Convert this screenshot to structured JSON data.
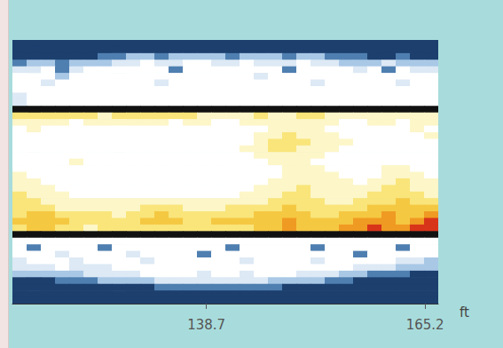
{
  "chart_data": {
    "type": "heatmap",
    "x_label": "ft",
    "xlim": [
      115.2,
      166.8
    ],
    "xticks": [
      138.7,
      165.2
    ],
    "tick_labels": "x",
    "color_range": [
      0,
      10
    ],
    "xbins": [
      115.2,
      116.92,
      118.64,
      120.36,
      122.08,
      123.8,
      125.52,
      127.24,
      128.96,
      130.68,
      132.4,
      134.12,
      135.84,
      137.56,
      139.28,
      141.0,
      142.72,
      144.44,
      146.16,
      147.88,
      149.6,
      151.32,
      153.04,
      154.76,
      156.48,
      158.2,
      159.92,
      161.64,
      163.36,
      165.08,
      166.8
    ],
    "cells": [
      [
        0,
        0,
        0,
        0,
        0,
        0,
        0,
        0,
        0,
        0,
        0,
        0,
        0,
        0,
        0,
        0,
        0,
        0,
        0,
        0,
        0,
        0,
        0,
        0,
        0,
        0,
        0,
        0,
        0,
        0
      ],
      [
        0,
        0,
        0,
        0,
        0,
        0,
        0,
        0,
        0,
        0,
        0,
        0,
        0,
        0,
        0,
        0,
        0,
        0,
        0,
        0,
        0,
        0,
        0,
        0,
        0,
        0,
        0,
        0,
        0,
        0
      ],
      [
        0,
        0,
        0,
        0,
        0,
        0,
        1,
        1,
        2,
        2,
        1,
        2,
        2,
        2,
        2,
        1,
        2,
        2,
        2,
        1,
        2,
        2,
        1,
        1,
        1,
        0,
        0,
        1,
        0,
        0
      ],
      [
        1,
        2,
        2,
        1,
        2,
        2,
        2,
        3,
        3,
        4,
        3,
        3,
        4,
        4,
        3,
        3,
        4,
        3,
        3,
        3,
        4,
        3,
        3,
        2,
        2,
        2,
        3,
        2,
        2,
        2
      ],
      [
        3,
        3,
        4,
        1,
        3,
        4,
        4,
        4,
        4,
        4,
        4,
        1,
        4,
        4,
        4,
        4,
        4,
        4,
        4,
        1,
        4,
        4,
        4,
        4,
        3,
        4,
        1,
        4,
        3,
        3
      ],
      [
        4,
        4,
        4,
        2,
        4,
        4,
        4,
        4,
        4,
        4,
        4,
        4,
        4,
        4,
        4,
        4,
        4,
        3,
        4,
        4,
        4,
        4,
        4,
        4,
        4,
        4,
        4,
        4,
        4,
        4
      ],
      [
        4,
        4,
        3,
        4,
        4,
        4,
        4,
        4,
        4,
        4,
        3,
        4,
        4,
        4,
        4,
        4,
        4,
        4,
        4,
        4,
        4,
        3,
        4,
        4,
        4,
        4,
        4,
        3,
        4,
        4
      ],
      [
        4,
        4,
        4,
        4,
        4,
        4,
        4,
        4,
        4,
        4,
        4,
        4,
        4,
        4,
        4,
        4,
        4,
        4,
        4,
        4,
        4,
        4,
        4,
        4,
        4,
        4,
        4,
        4,
        4,
        4
      ],
      [
        3,
        4,
        4,
        4,
        4,
        4,
        4,
        4,
        4,
        4,
        4,
        4,
        4,
        4,
        4,
        4,
        4,
        4,
        4,
        4,
        4,
        4,
        4,
        4,
        4,
        4,
        4,
        4,
        4,
        4
      ],
      [
        3,
        4,
        4,
        4,
        4,
        4,
        4,
        4,
        4,
        4,
        4,
        4,
        4,
        4,
        4,
        4,
        4,
        4,
        4,
        4,
        4,
        4,
        4,
        4,
        4,
        4,
        4,
        4,
        4,
        4
      ],
      [
        10,
        10,
        10,
        10,
        10,
        10,
        10,
        10,
        10,
        10,
        10,
        10,
        10,
        10,
        10,
        10,
        10,
        10,
        10,
        10,
        10,
        10,
        10,
        10,
        10,
        10,
        10,
        10,
        10,
        10
      ],
      [
        6,
        6,
        6,
        6,
        6,
        6,
        5,
        6,
        6,
        6,
        6,
        6,
        6,
        5,
        5,
        5,
        5,
        6,
        5,
        5,
        6,
        6,
        5,
        5,
        5,
        5,
        5,
        5,
        5,
        5
      ],
      [
        5,
        5,
        5,
        5,
        4,
        5,
        5,
        5,
        5,
        5,
        5,
        4,
        5,
        5,
        4,
        4,
        5,
        5,
        5,
        5,
        5,
        5,
        5,
        4,
        4,
        5,
        5,
        4,
        5,
        5
      ],
      [
        4,
        5,
        4,
        4,
        4,
        4,
        4,
        4,
        4,
        4,
        4,
        4,
        4,
        4,
        4,
        4,
        4,
        4,
        5,
        5,
        5,
        5,
        4,
        4,
        4,
        4,
        4,
        4,
        5,
        4
      ],
      [
        4,
        4,
        4,
        4,
        4,
        4,
        4,
        4,
        4,
        4,
        4,
        4,
        4,
        4,
        4,
        4,
        4,
        5,
        5,
        6,
        5,
        5,
        5,
        4,
        4,
        4,
        4,
        4,
        4,
        5
      ],
      [
        4,
        4,
        4,
        4,
        4,
        4,
        4,
        4,
        4,
        4,
        4,
        4,
        4,
        4,
        4,
        4,
        4,
        5,
        6,
        6,
        6,
        5,
        5,
        5,
        4,
        4,
        4,
        4,
        4,
        4
      ],
      [
        4,
        4,
        4,
        4,
        4,
        4,
        4,
        4,
        4,
        4,
        4,
        4,
        4,
        4,
        4,
        4,
        5,
        5,
        6,
        6,
        5,
        5,
        5,
        4,
        4,
        4,
        4,
        4,
        4,
        4
      ],
      [
        4,
        4,
        4,
        4,
        4,
        4,
        4,
        4,
        4,
        4,
        4,
        4,
        4,
        4,
        4,
        4,
        4,
        5,
        5,
        5,
        5,
        5,
        4,
        4,
        4,
        4,
        4,
        4,
        4,
        4
      ],
      [
        4,
        4,
        4,
        4,
        5,
        4,
        4,
        4,
        4,
        4,
        4,
        4,
        4,
        4,
        4,
        4,
        4,
        4,
        5,
        5,
        5,
        4,
        4,
        4,
        4,
        4,
        4,
        4,
        4,
        4
      ],
      [
        4,
        4,
        4,
        4,
        4,
        4,
        4,
        4,
        4,
        4,
        4,
        4,
        4,
        4,
        4,
        4,
        4,
        4,
        4,
        5,
        5,
        5,
        4,
        4,
        4,
        4,
        5,
        5,
        4,
        4
      ],
      [
        5,
        4,
        4,
        4,
        4,
        4,
        4,
        4,
        4,
        4,
        4,
        4,
        4,
        4,
        4,
        4,
        4,
        4,
        4,
        5,
        5,
        5,
        5,
        4,
        4,
        4,
        5,
        5,
        5,
        4
      ],
      [
        5,
        5,
        4,
        4,
        4,
        4,
        4,
        4,
        4,
        4,
        4,
        4,
        4,
        4,
        4,
        4,
        4,
        4,
        5,
        5,
        5,
        5,
        5,
        5,
        4,
        5,
        5,
        6,
        5,
        5
      ],
      [
        5,
        5,
        5,
        4,
        4,
        4,
        4,
        4,
        4,
        4,
        4,
        4,
        4,
        4,
        4,
        4,
        4,
        5,
        5,
        5,
        6,
        5,
        5,
        5,
        5,
        5,
        6,
        6,
        5,
        5
      ],
      [
        6,
        5,
        5,
        5,
        4,
        4,
        4,
        4,
        4,
        4,
        4,
        4,
        4,
        4,
        4,
        4,
        5,
        5,
        5,
        6,
        6,
        5,
        5,
        5,
        5,
        6,
        6,
        6,
        6,
        5
      ],
      [
        6,
        6,
        5,
        5,
        5,
        5,
        5,
        5,
        5,
        5,
        5,
        5,
        5,
        5,
        5,
        5,
        5,
        5,
        6,
        6,
        6,
        6,
        5,
        5,
        6,
        6,
        6,
        7,
        6,
        6
      ],
      [
        6,
        6,
        6,
        5,
        5,
        5,
        5,
        5,
        5,
        6,
        6,
        6,
        5,
        5,
        5,
        6,
        6,
        6,
        6,
        7,
        6,
        6,
        6,
        6,
        6,
        7,
        7,
        7,
        7,
        7
      ],
      [
        6,
        7,
        7,
        6,
        6,
        6,
        6,
        5,
        6,
        6,
        7,
        6,
        6,
        6,
        6,
        6,
        6,
        7,
        7,
        7,
        7,
        6,
        6,
        7,
        7,
        7,
        8,
        7,
        7,
        8
      ],
      [
        7,
        7,
        7,
        7,
        6,
        6,
        6,
        6,
        6,
        7,
        7,
        7,
        6,
        6,
        7,
        7,
        7,
        7,
        7,
        8,
        7,
        7,
        7,
        7,
        8,
        8,
        8,
        7,
        8,
        9
      ],
      [
        6,
        7,
        7,
        6,
        6,
        5,
        6,
        6,
        6,
        6,
        6,
        6,
        6,
        6,
        6,
        6,
        6,
        7,
        7,
        8,
        7,
        7,
        7,
        8,
        8,
        9,
        8,
        8,
        9,
        9
      ],
      [
        10,
        10,
        10,
        10,
        10,
        10,
        10,
        10,
        10,
        10,
        10,
        10,
        10,
        10,
        10,
        10,
        10,
        10,
        10,
        10,
        10,
        10,
        10,
        10,
        10,
        10,
        10,
        10,
        10,
        10
      ],
      [
        4,
        4,
        4,
        4,
        4,
        4,
        4,
        4,
        4,
        4,
        4,
        4,
        4,
        4,
        4,
        4,
        4,
        4,
        4,
        4,
        4,
        4,
        4,
        4,
        4,
        4,
        4,
        4,
        4,
        4
      ],
      [
        4,
        1,
        4,
        4,
        4,
        4,
        1,
        4,
        4,
        4,
        4,
        4,
        4,
        4,
        4,
        1,
        4,
        4,
        4,
        4,
        4,
        1,
        4,
        4,
        4,
        4,
        4,
        1,
        4,
        4
      ],
      [
        4,
        4,
        4,
        3,
        4,
        4,
        4,
        4,
        3,
        4,
        4,
        4,
        4,
        1,
        4,
        4,
        4,
        4,
        4,
        4,
        4,
        4,
        4,
        4,
        1,
        4,
        4,
        4,
        4,
        4
      ],
      [
        3,
        4,
        4,
        4,
        3,
        4,
        4,
        4,
        4,
        3,
        4,
        4,
        4,
        4,
        4,
        4,
        3,
        4,
        4,
        4,
        4,
        3,
        4,
        4,
        4,
        4,
        4,
        3,
        3,
        2
      ],
      [
        3,
        3,
        3,
        4,
        3,
        3,
        3,
        4,
        4,
        4,
        4,
        4,
        4,
        4,
        4,
        4,
        4,
        4,
        4,
        4,
        4,
        4,
        4,
        4,
        3,
        3,
        3,
        2,
        2,
        2
      ],
      [
        2,
        2,
        2,
        2,
        2,
        3,
        3,
        3,
        3,
        4,
        4,
        4,
        4,
        3,
        4,
        4,
        3,
        4,
        4,
        4,
        3,
        3,
        3,
        2,
        2,
        1,
        1,
        1,
        0,
        0
      ],
      [
        0,
        0,
        0,
        1,
        1,
        1,
        2,
        2,
        2,
        2,
        3,
        3,
        3,
        3,
        3,
        3,
        3,
        3,
        2,
        2,
        2,
        2,
        1,
        1,
        0,
        0,
        0,
        0,
        0,
        0
      ],
      [
        0,
        0,
        0,
        0,
        0,
        0,
        0,
        0,
        0,
        0,
        1,
        1,
        1,
        1,
        1,
        1,
        1,
        1,
        1,
        0,
        0,
        0,
        0,
        0,
        0,
        0,
        0,
        0,
        0,
        0
      ],
      [
        0,
        0,
        0,
        0,
        0,
        0,
        0,
        0,
        0,
        0,
        0,
        0,
        0,
        0,
        0,
        0,
        0,
        0,
        0,
        0,
        0,
        0,
        0,
        0,
        0,
        0,
        0,
        0,
        0,
        0
      ],
      [
        0,
        0,
        0,
        0,
        0,
        0,
        0,
        0,
        0,
        0,
        0,
        0,
        0,
        0,
        0,
        0,
        0,
        0,
        0,
        0,
        0,
        0,
        0,
        0,
        0,
        0,
        0,
        0,
        0,
        0
      ]
    ]
  }
}
